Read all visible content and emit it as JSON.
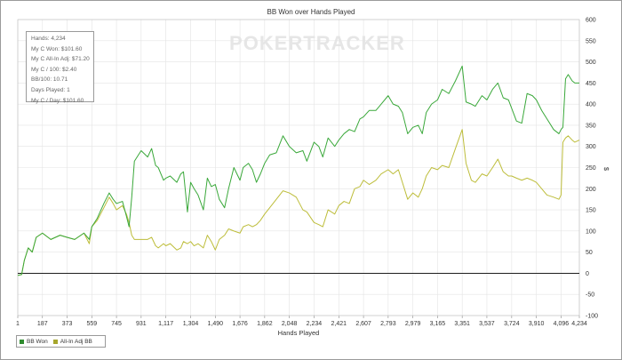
{
  "chart_data": {
    "type": "line",
    "title": "BB Won over Hands Played",
    "xlabel": "Hands Played",
    "ylabel": "$",
    "xlim": [
      1,
      4234
    ],
    "ylim": [
      -100,
      600
    ],
    "grid": true,
    "legend_placement": "bottom-left",
    "x_ticks": [
      1,
      187,
      373,
      559,
      745,
      931,
      1117,
      1304,
      1490,
      1676,
      1862,
      2048,
      2234,
      2421,
      2607,
      2793,
      2979,
      3165,
      3351,
      3537,
      3724,
      3910,
      4096,
      4234
    ],
    "x_tick_labels": [
      "1",
      "187",
      "373",
      "559",
      "745",
      "931",
      "1,117",
      "1,304",
      "1,490",
      "1,676",
      "1,862",
      "2,048",
      "2,234",
      "2,421",
      "2,607",
      "2,793",
      "2,979",
      "3,165",
      "3,351",
      "3,537",
      "3,724",
      "3,910",
      "4,096",
      "4,234"
    ],
    "y_ticks": [
      -100,
      -50,
      0,
      50,
      100,
      150,
      200,
      250,
      300,
      350,
      400,
      450,
      500,
      550,
      600
    ],
    "series": [
      {
        "name": "BB Won",
        "color": "#3aa83a",
        "points": [
          [
            1,
            -5
          ],
          [
            30,
            -3
          ],
          [
            50,
            30
          ],
          [
            80,
            60
          ],
          [
            110,
            50
          ],
          [
            140,
            85
          ],
          [
            187,
            95
          ],
          [
            250,
            80
          ],
          [
            320,
            90
          ],
          [
            373,
            85
          ],
          [
            430,
            80
          ],
          [
            500,
            95
          ],
          [
            540,
            80
          ],
          [
            559,
            110
          ],
          [
            600,
            130
          ],
          [
            650,
            165
          ],
          [
            690,
            190
          ],
          [
            720,
            175
          ],
          [
            745,
            165
          ],
          [
            790,
            170
          ],
          [
            820,
            135
          ],
          [
            840,
            110
          ],
          [
            860,
            180
          ],
          [
            880,
            265
          ],
          [
            931,
            290
          ],
          [
            980,
            275
          ],
          [
            1010,
            295
          ],
          [
            1040,
            255
          ],
          [
            1060,
            250
          ],
          [
            1100,
            220
          ],
          [
            1117,
            225
          ],
          [
            1150,
            230
          ],
          [
            1200,
            215
          ],
          [
            1230,
            235
          ],
          [
            1250,
            240
          ],
          [
            1280,
            145
          ],
          [
            1304,
            215
          ],
          [
            1330,
            200
          ],
          [
            1360,
            185
          ],
          [
            1400,
            150
          ],
          [
            1430,
            225
          ],
          [
            1460,
            205
          ],
          [
            1490,
            210
          ],
          [
            1520,
            175
          ],
          [
            1560,
            155
          ],
          [
            1590,
            200
          ],
          [
            1630,
            250
          ],
          [
            1676,
            220
          ],
          [
            1700,
            250
          ],
          [
            1740,
            260
          ],
          [
            1770,
            245
          ],
          [
            1800,
            215
          ],
          [
            1830,
            235
          ],
          [
            1862,
            260
          ],
          [
            1900,
            280
          ],
          [
            1950,
            285
          ],
          [
            2000,
            325
          ],
          [
            2048,
            300
          ],
          [
            2100,
            285
          ],
          [
            2150,
            290
          ],
          [
            2180,
            265
          ],
          [
            2234,
            310
          ],
          [
            2270,
            300
          ],
          [
            2300,
            275
          ],
          [
            2340,
            320
          ],
          [
            2390,
            300
          ],
          [
            2421,
            315
          ],
          [
            2460,
            330
          ],
          [
            2500,
            340
          ],
          [
            2540,
            335
          ],
          [
            2580,
            365
          ],
          [
            2607,
            370
          ],
          [
            2650,
            385
          ],
          [
            2700,
            385
          ],
          [
            2740,
            400
          ],
          [
            2793,
            420
          ],
          [
            2830,
            400
          ],
          [
            2870,
            395
          ],
          [
            2900,
            380
          ],
          [
            2940,
            330
          ],
          [
            2979,
            345
          ],
          [
            3020,
            350
          ],
          [
            3050,
            330
          ],
          [
            3080,
            380
          ],
          [
            3120,
            400
          ],
          [
            3165,
            410
          ],
          [
            3200,
            435
          ],
          [
            3250,
            425
          ],
          [
            3300,
            455
          ],
          [
            3351,
            490
          ],
          [
            3380,
            405
          ],
          [
            3420,
            400
          ],
          [
            3450,
            395
          ],
          [
            3500,
            420
          ],
          [
            3537,
            410
          ],
          [
            3580,
            435
          ],
          [
            3620,
            450
          ],
          [
            3660,
            415
          ],
          [
            3700,
            410
          ],
          [
            3724,
            390
          ],
          [
            3760,
            360
          ],
          [
            3800,
            355
          ],
          [
            3840,
            425
          ],
          [
            3880,
            420
          ],
          [
            3910,
            410
          ],
          [
            3950,
            385
          ],
          [
            3990,
            365
          ],
          [
            4040,
            340
          ],
          [
            4080,
            330
          ],
          [
            4096,
            340
          ],
          [
            4110,
            345
          ],
          [
            4130,
            460
          ],
          [
            4150,
            470
          ],
          [
            4180,
            455
          ],
          [
            4200,
            450
          ],
          [
            4234,
            450
          ]
        ]
      },
      {
        "name": "All-In Adj BB",
        "color": "#bdbd3a",
        "points": [
          [
            1,
            -5
          ],
          [
            30,
            -3
          ],
          [
            50,
            30
          ],
          [
            80,
            60
          ],
          [
            110,
            50
          ],
          [
            140,
            85
          ],
          [
            187,
            95
          ],
          [
            250,
            80
          ],
          [
            320,
            90
          ],
          [
            373,
            85
          ],
          [
            430,
            80
          ],
          [
            500,
            95
          ],
          [
            540,
            70
          ],
          [
            559,
            110
          ],
          [
            600,
            125
          ],
          [
            650,
            155
          ],
          [
            690,
            180
          ],
          [
            720,
            165
          ],
          [
            745,
            150
          ],
          [
            790,
            160
          ],
          [
            820,
            140
          ],
          [
            840,
            120
          ],
          [
            860,
            90
          ],
          [
            880,
            80
          ],
          [
            931,
            80
          ],
          [
            980,
            80
          ],
          [
            1010,
            85
          ],
          [
            1040,
            65
          ],
          [
            1060,
            60
          ],
          [
            1100,
            70
          ],
          [
            1117,
            65
          ],
          [
            1150,
            70
          ],
          [
            1200,
            55
          ],
          [
            1230,
            60
          ],
          [
            1250,
            75
          ],
          [
            1280,
            70
          ],
          [
            1304,
            75
          ],
          [
            1330,
            65
          ],
          [
            1360,
            70
          ],
          [
            1400,
            60
          ],
          [
            1430,
            90
          ],
          [
            1460,
            75
          ],
          [
            1490,
            55
          ],
          [
            1520,
            80
          ],
          [
            1560,
            90
          ],
          [
            1590,
            105
          ],
          [
            1630,
            100
          ],
          [
            1676,
            95
          ],
          [
            1700,
            110
          ],
          [
            1740,
            115
          ],
          [
            1770,
            110
          ],
          [
            1800,
            115
          ],
          [
            1830,
            125
          ],
          [
            1862,
            140
          ],
          [
            1900,
            155
          ],
          [
            1950,
            175
          ],
          [
            2000,
            195
          ],
          [
            2048,
            190
          ],
          [
            2100,
            180
          ],
          [
            2150,
            150
          ],
          [
            2180,
            145
          ],
          [
            2234,
            120
          ],
          [
            2270,
            115
          ],
          [
            2300,
            110
          ],
          [
            2340,
            150
          ],
          [
            2390,
            140
          ],
          [
            2421,
            160
          ],
          [
            2460,
            170
          ],
          [
            2500,
            165
          ],
          [
            2540,
            200
          ],
          [
            2580,
            205
          ],
          [
            2607,
            220
          ],
          [
            2650,
            210
          ],
          [
            2700,
            220
          ],
          [
            2740,
            235
          ],
          [
            2793,
            245
          ],
          [
            2830,
            235
          ],
          [
            2870,
            245
          ],
          [
            2900,
            215
          ],
          [
            2940,
            175
          ],
          [
            2979,
            190
          ],
          [
            3020,
            180
          ],
          [
            3050,
            200
          ],
          [
            3080,
            230
          ],
          [
            3120,
            250
          ],
          [
            3165,
            245
          ],
          [
            3200,
            255
          ],
          [
            3250,
            250
          ],
          [
            3300,
            295
          ],
          [
            3351,
            340
          ],
          [
            3380,
            260
          ],
          [
            3420,
            220
          ],
          [
            3450,
            215
          ],
          [
            3500,
            235
          ],
          [
            3537,
            230
          ],
          [
            3580,
            250
          ],
          [
            3620,
            270
          ],
          [
            3660,
            240
          ],
          [
            3700,
            230
          ],
          [
            3724,
            230
          ],
          [
            3760,
            225
          ],
          [
            3800,
            220
          ],
          [
            3840,
            225
          ],
          [
            3880,
            220
          ],
          [
            3910,
            215
          ],
          [
            3950,
            200
          ],
          [
            3990,
            185
          ],
          [
            4040,
            180
          ],
          [
            4080,
            175
          ],
          [
            4096,
            185
          ],
          [
            4110,
            310
          ],
          [
            4130,
            320
          ],
          [
            4150,
            325
          ],
          [
            4180,
            315
          ],
          [
            4200,
            310
          ],
          [
            4234,
            315
          ]
        ]
      }
    ]
  },
  "watermark": {
    "left": "P",
    "mid": "O",
    "right": "KERTRACKER"
  },
  "stats": {
    "hands": "Hands: 4,234",
    "won": "My C Won: $101.60",
    "allin": "My C All-In Adj: $71.20",
    "per100": "My C / 100: $2.40",
    "bb100": "BB/100: 10.71",
    "days": "Days Played: 1",
    "perday": "My C / Day: $101.60"
  },
  "legend": {
    "items": [
      {
        "label": "BB Won",
        "color": "#3aa83a"
      },
      {
        "label": "All-In Adj BB",
        "color": "#bdbd3a"
      }
    ]
  }
}
